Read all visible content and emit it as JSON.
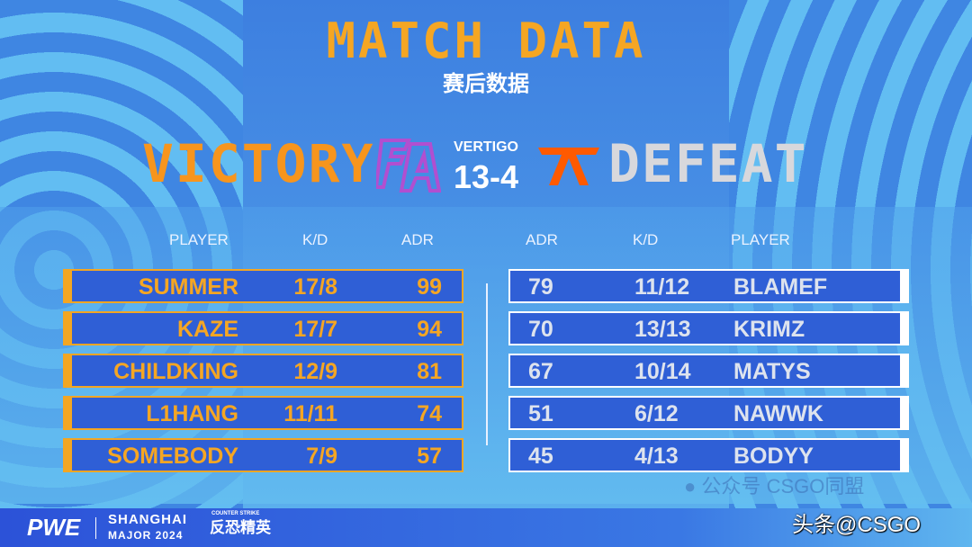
{
  "header": {
    "title": "MATCH DATA",
    "subtitle": "赛后数据"
  },
  "match": {
    "left_result": "VICTORY",
    "right_result": "DEFEAT",
    "map": "VERTIGO",
    "score": "13-4",
    "left_team_logo": "faze-logo",
    "right_team_logo": "fnatic-logo",
    "colors": {
      "victory": "#f7951d",
      "defeat": "#d8d8dc",
      "faze": "#b14fd0",
      "fnatic": "#ff5a00"
    }
  },
  "columns": {
    "left": [
      "PLAYER",
      "K/D",
      "ADR"
    ],
    "right": [
      "ADR",
      "K/D",
      "PLAYER"
    ]
  },
  "left_players": [
    {
      "name": "SUMMER",
      "kd": "17/8",
      "adr": "99"
    },
    {
      "name": "KAZE",
      "kd": "17/7",
      "adr": "94"
    },
    {
      "name": "CHILDKING",
      "kd": "12/9",
      "adr": "81"
    },
    {
      "name": "L1HANG",
      "kd": "11/11",
      "adr": "74"
    },
    {
      "name": "SOMEBODY",
      "kd": "7/9",
      "adr": "57"
    }
  ],
  "right_players": [
    {
      "name": "BLAMEF",
      "kd": "11/12",
      "adr": "79"
    },
    {
      "name": "KRIMZ",
      "kd": "13/13",
      "adr": "70"
    },
    {
      "name": "MATYS",
      "kd": "10/14",
      "adr": "67"
    },
    {
      "name": "NAWWK",
      "kd": "6/12",
      "adr": "51"
    },
    {
      "name": "BODYY",
      "kd": "4/13",
      "adr": "45"
    }
  ],
  "footer": {
    "brand": "PWE",
    "event_line1": "SHANGHAI",
    "event_line2": "MAJOR 2024",
    "game_small": "COUNTER STRIKE",
    "game": "反恐精英"
  },
  "watermark": {
    "wechat": "公众号",
    "wechat_name": "CSGO同盟",
    "toutiao": "头条@CSGO"
  }
}
